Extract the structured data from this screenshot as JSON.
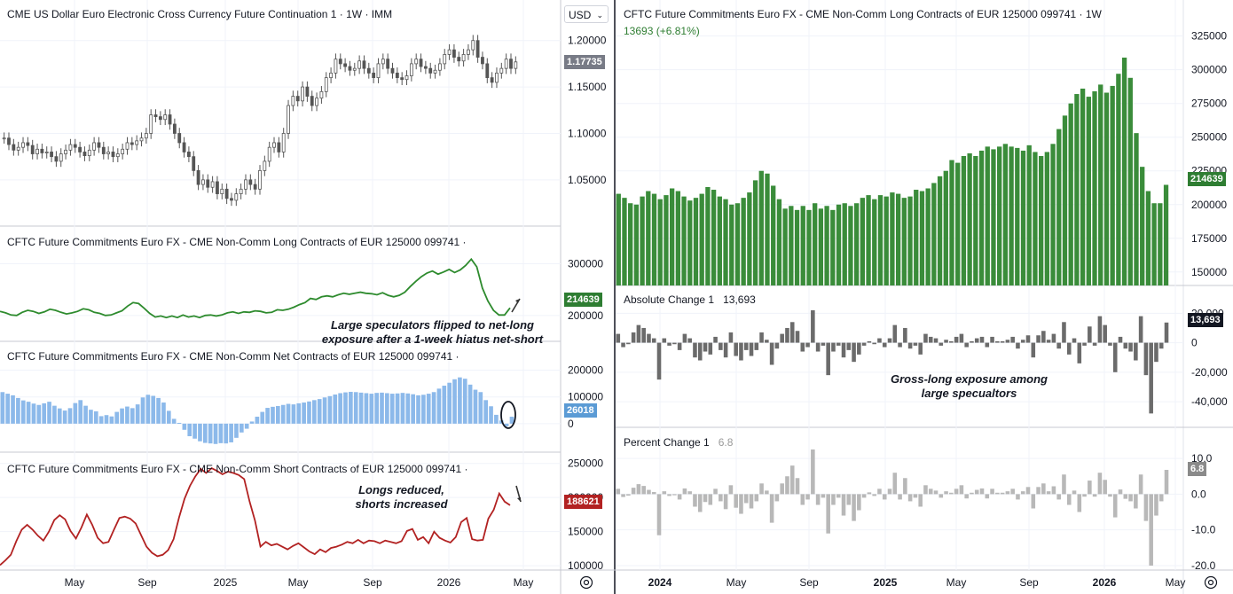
{
  "currency_select": "USD",
  "left": {
    "price": {
      "title": "CME US Dollar Euro Electronic Cross Currency Future Continuation 1 · 1W · IMM",
      "last_label": "1.17735",
      "ticks": [
        "1.20000",
        "1.15000",
        "1.10000",
        "1.05000"
      ],
      "tick_values": [
        1.2,
        1.15,
        1.1,
        1.05
      ],
      "ylim": [
        1.005,
        1.215
      ]
    },
    "long": {
      "title": "CFTC Future Commitments Euro FX - CME Non-Comm Long Contracts of EUR 125000 099741 ·",
      "last_label": "214639",
      "ticks": [
        "300000",
        "200000"
      ],
      "tick_values": [
        300000,
        200000
      ],
      "ylim": [
        150000,
        330000
      ],
      "color": "#2e8b2e"
    },
    "net": {
      "title": "CFTC Future Commitments Euro FX - CME Non-Comm Net Contracts of EUR 125000 099741 ·",
      "last_label": "26018",
      "ticks": [
        "200000",
        "100000",
        "0"
      ],
      "tick_values": [
        200000,
        100000,
        0
      ],
      "ylim": [
        -90000,
        225000
      ],
      "color": "#8cb9ea"
    },
    "short": {
      "title": "CFTC Future Commitments Euro FX - CME Non-Comm Short Contracts of EUR 125000 099741 ·",
      "last_label": "188621",
      "ticks": [
        "250000",
        "200000",
        "150000",
        "100000"
      ],
      "tick_values": [
        250000,
        200000,
        150000,
        100000
      ],
      "ylim": [
        95000,
        260000
      ],
      "color": "#b22222"
    },
    "xaxis": [
      "May",
      "Sep",
      "2025",
      "May",
      "Sep",
      "2026",
      "May"
    ],
    "annotations": {
      "flip": [
        "Large speculators flipped to net-long",
        "exposure after a 1-week hiatus net-short"
      ],
      "longs": [
        "Longs reduced,",
        "shorts increased"
      ]
    }
  },
  "right": {
    "main": {
      "title": "CFTC Future Commitments Euro FX - CME Non-Comm Long Contracts of EUR 125000 099741 · 1W",
      "change": "13693 (+6.81%)",
      "last_label": "214639",
      "ticks": [
        "325000",
        "300000",
        "275000",
        "250000",
        "225000",
        "200000",
        "175000",
        "150000"
      ],
      "tick_values": [
        325000,
        300000,
        275000,
        250000,
        225000,
        200000,
        175000,
        150000
      ],
      "ylim": [
        140000,
        332000
      ],
      "color": "#3a8c3a"
    },
    "abs": {
      "title": "Absolute Change 1",
      "value": "13,693",
      "last_label": "13,693",
      "ticks": [
        "20,000",
        "0",
        "-20,000",
        "-40,000"
      ],
      "tick_values": [
        20000,
        0,
        -20000,
        -40000
      ],
      "ylim": [
        -55000,
        25000
      ],
      "color": "#6b6b6b"
    },
    "pct": {
      "title": "Percent Change 1",
      "value": "6.8",
      "last_label": "6.8",
      "ticks": [
        "10.0",
        "0.0",
        "-10.0",
        "-20.0"
      ],
      "tick_values": [
        10,
        0,
        -10,
        -20
      ],
      "ylim": [
        -21,
        13
      ],
      "color": "#b8b8b8"
    },
    "xaxis": [
      "2024",
      "May",
      "Sep",
      "2025",
      "May",
      "Sep",
      "2026",
      "May"
    ],
    "annotation": [
      "Gross-long exposure among",
      "large specualtors"
    ]
  },
  "chart_data": [
    {
      "type": "line",
      "title": "CFTC Future Commitments Euro FX - CME Non-Comm Long Contracts of EUR 125000 099741",
      "series": [
        {
          "name": "Long Contracts",
          "values": [
            208000,
            205000,
            201000,
            200000,
            206000,
            210000,
            208000,
            204000,
            207000,
            212000,
            210000,
            206000,
            203000,
            205000,
            208000,
            213000,
            211000,
            206000,
            204000,
            200000,
            201000,
            205000,
            209000,
            218000,
            225000,
            223000,
            214000,
            204000,
            197000,
            199000,
            196000,
            199000,
            196000,
            201000,
            197000,
            199000,
            196000,
            200000,
            201000,
            199000,
            201000,
            205000,
            207000,
            204000,
            207000,
            206000,
            209000,
            208000,
            205000,
            206000,
            211000,
            210000,
            212000,
            216000,
            221000,
            225000,
            233000,
            231000,
            236000,
            238000,
            236000,
            240000,
            243000,
            241000,
            243000,
            245000,
            243000,
            242000,
            240000,
            244000,
            239000,
            236000,
            239000,
            245000,
            256000,
            266000,
            275000,
            282000,
            286000,
            280000,
            284000,
            289000,
            283000,
            288000,
            297000,
            309000,
            294000,
            253000,
            228000,
            210000,
            201000,
            201000,
            214639
          ]
        }
      ],
      "ylim": [
        150000,
        330000
      ]
    },
    {
      "type": "bar",
      "title": "CFTC Future Commitments Euro FX - CME Non-Comm Net Contracts of EUR 125000 099741",
      "series": [
        {
          "name": "Net Contracts",
          "values": [
            118000,
            112000,
            106000,
            96000,
            87000,
            82000,
            75000,
            70000,
            76000,
            82000,
            67000,
            57000,
            49000,
            58000,
            77000,
            88000,
            67000,
            52000,
            46000,
            28000,
            32000,
            27000,
            44000,
            57000,
            64000,
            58000,
            72000,
            98000,
            108000,
            104000,
            96000,
            79000,
            48000,
            18000,
            3000,
            -23000,
            -47000,
            -56000,
            -66000,
            -72000,
            -74000,
            -76000,
            -73000,
            -74000,
            -70000,
            -53000,
            -33000,
            -19000,
            8000,
            26000,
            44000,
            59000,
            63000,
            66000,
            70000,
            74000,
            72000,
            76000,
            79000,
            83000,
            88000,
            92000,
            98000,
            103000,
            109000,
            114000,
            117000,
            119000,
            118000,
            116000,
            114000,
            112000,
            115000,
            116000,
            114000,
            112000,
            113000,
            115000,
            113000,
            110000,
            106000,
            108000,
            112000,
            118000,
            131000,
            142000,
            153000,
            166000,
            173000,
            168000,
            146000,
            127000,
            118000,
            88000,
            65000,
            33000,
            12000,
            -10000,
            26018
          ]
        }
      ],
      "ylim": [
        -90000,
        225000
      ]
    },
    {
      "type": "line",
      "title": "CFTC Future Commitments Euro FX - CME Non-Comm Short Contracts of EUR 125000 099741",
      "series": [
        {
          "name": "Short Contracts",
          "values": [
            101000,
            108000,
            116000,
            136000,
            153000,
            160000,
            153000,
            144000,
            137000,
            150000,
            167000,
            174000,
            168000,
            151000,
            140000,
            156000,
            175000,
            160000,
            141000,
            133000,
            135000,
            153000,
            170000,
            172000,
            169000,
            162000,
            145000,
            128000,
            119000,
            114000,
            116000,
            123000,
            139000,
            171000,
            198000,
            217000,
            231000,
            242000,
            236000,
            243000,
            239000,
            234000,
            238000,
            236000,
            233000,
            227000,
            194000,
            166000,
            128000,
            135000,
            130000,
            132000,
            128000,
            124000,
            129000,
            133000,
            127000,
            121000,
            117000,
            124000,
            120000,
            126000,
            128000,
            131000,
            135000,
            133000,
            138000,
            133000,
            137000,
            136000,
            133000,
            137000,
            135000,
            133000,
            136000,
            151000,
            154000,
            138000,
            142000,
            133000,
            150000,
            141000,
            137000,
            134000,
            142000,
            164000,
            170000,
            139000,
            137000,
            138000,
            169000,
            182000,
            206000,
            194000,
            188621
          ]
        }
      ],
      "ylim": [
        95000,
        260000
      ]
    },
    {
      "type": "bar",
      "title": "Absolute Change 1",
      "series": [
        {
          "name": "Absolute Change 1",
          "values": [
            6000,
            -3000,
            -1000,
            7000,
            12000,
            10000,
            6000,
            3000,
            -25000,
            3000,
            -2000,
            -1000,
            -5000,
            6000,
            3000,
            -10000,
            -12000,
            -6000,
            -8000,
            4000,
            -5000,
            -10000,
            7000,
            -9000,
            -12000,
            -5000,
            -9000,
            -5000,
            7000,
            2000,
            -15000,
            -4000,
            6000,
            10000,
            14000,
            8000,
            -6000,
            -3000,
            22000,
            -6000,
            -2000,
            -22000,
            -6000,
            -2000,
            -10000,
            -5000,
            -13000,
            -8000,
            -2000,
            1000,
            -1000,
            3000,
            -3000,
            3000,
            12000,
            -3000,
            10000,
            -4000,
            -2000,
            -8000,
            6000,
            4000,
            3000,
            -2000,
            2000,
            1000,
            4000,
            6000,
            -3000,
            1000,
            3000,
            4000,
            -3000,
            4000,
            1000,
            1000,
            2000,
            4000,
            -4000,
            2000,
            5000,
            -10000,
            5000,
            8000,
            2000,
            6000,
            -4000,
            14000,
            -8000,
            3000,
            -14000,
            -2000,
            11000,
            -2000,
            18000,
            12000,
            -2000,
            -20000,
            4000,
            -4000,
            -6000,
            -12000,
            18000,
            -22000,
            -48000,
            -13000,
            -4000,
            13693
          ]
        }
      ],
      "ylim": [
        -55000,
        25000
      ]
    },
    {
      "type": "bar",
      "title": "Percent Change 1",
      "series": [
        {
          "name": "Percent Change 1",
          "values": [
            1.5,
            -0.8,
            -0.4,
            1.8,
            2.8,
            2.3,
            1.2,
            0.6,
            -11.5,
            0.8,
            -0.5,
            -0.3,
            -1.5,
            1.6,
            0.8,
            -3.5,
            -5.0,
            -2.2,
            -3.0,
            1.5,
            -2.0,
            -4.2,
            2.5,
            -3.8,
            -5.5,
            -2.5,
            -4.0,
            -2.0,
            3.0,
            1.0,
            -8.0,
            -2.0,
            3.0,
            5.0,
            8.0,
            4.5,
            -3.0,
            -1.5,
            12.5,
            -3.0,
            -1.0,
            -11.0,
            -3.0,
            -1.0,
            -6.0,
            -3.0,
            -7.5,
            -4.5,
            -1.0,
            0.5,
            -0.5,
            1.5,
            -1.5,
            1.5,
            6.0,
            -1.5,
            4.5,
            -2.0,
            -1.0,
            -3.5,
            2.5,
            1.5,
            1.0,
            -1.0,
            0.8,
            0.4,
            1.5,
            2.5,
            -1.2,
            0.4,
            1.2,
            1.6,
            -1.2,
            1.5,
            0.4,
            0.4,
            0.8,
            1.5,
            -1.5,
            0.8,
            2.0,
            -4.0,
            2.0,
            3.0,
            0.8,
            2.2,
            -1.5,
            5.5,
            -3.0,
            1.0,
            -5.0,
            -0.7,
            3.8,
            -0.7,
            6.0,
            4.0,
            -0.7,
            -6.5,
            1.3,
            -1.3,
            -2.0,
            -4.0,
            5.5,
            -7.5,
            -20.0,
            -6.0,
            -2.0,
            6.8
          ]
        }
      ],
      "ylim": [
        -21,
        13
      ]
    }
  ]
}
